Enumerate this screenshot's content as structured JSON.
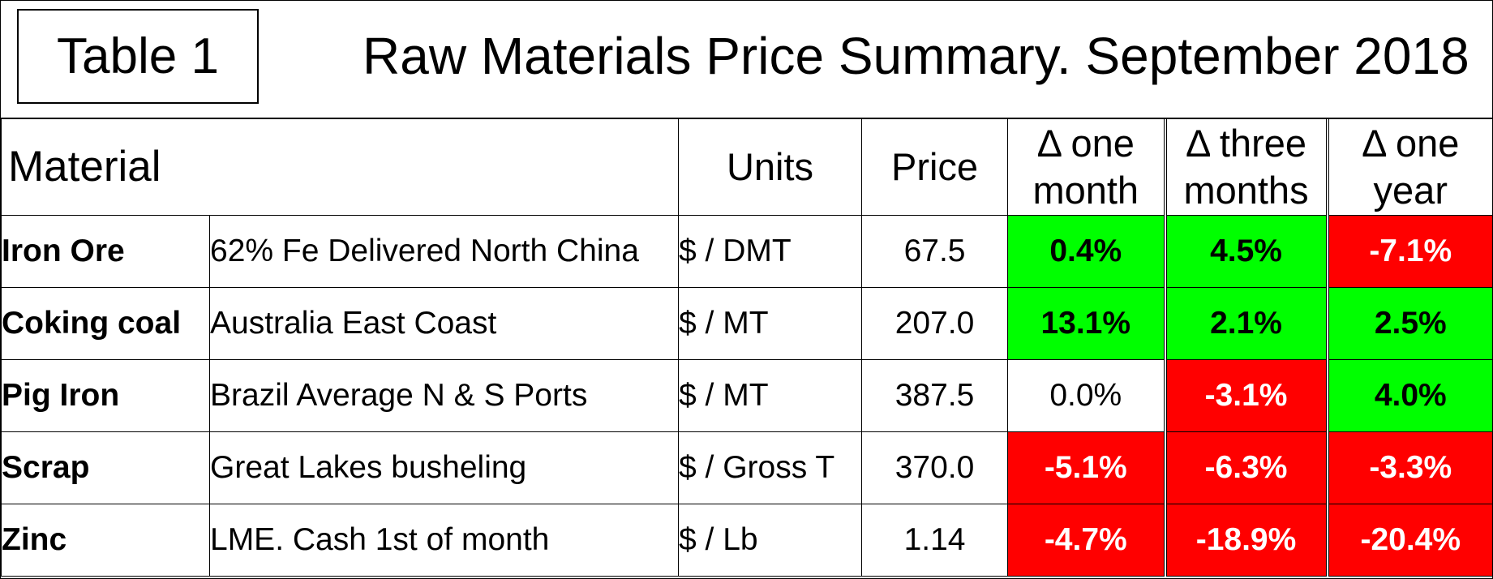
{
  "header": {
    "table_label": "Table 1",
    "title": "Raw Materials Price Summary. September 2018"
  },
  "columns": {
    "material": "Material",
    "units": "Units",
    "price": "Price",
    "delta_one_month": [
      "Δ one",
      "month"
    ],
    "delta_three_months": [
      "Δ three",
      "months"
    ],
    "delta_one_year": [
      "Δ one",
      "year"
    ]
  },
  "rows": [
    {
      "name": "Iron Ore",
      "description": "62% Fe Delivered North China",
      "units": "$ / DMT",
      "price": "67.5",
      "d1m": "0.4%",
      "d3m": "4.5%",
      "d1y": "-7.1%"
    },
    {
      "name": "Coking coal",
      "description": "Australia East Coast",
      "units": "$ / MT",
      "price": "207.0",
      "d1m": "13.1%",
      "d3m": "2.1%",
      "d1y": "2.5%"
    },
    {
      "name": "Pig Iron",
      "description": "Brazil Average N & S Ports",
      "units": "$ / MT",
      "price": "387.5",
      "d1m": "0.0%",
      "d3m": "-3.1%",
      "d1y": "4.0%"
    },
    {
      "name": "Scrap",
      "description": "Great Lakes busheling",
      "units": "$ / Gross T",
      "price": "370.0",
      "d1m": "-5.1%",
      "d3m": "-6.3%",
      "d1y": "-3.3%"
    },
    {
      "name": "Zinc",
      "description": "LME. Cash 1st of month",
      "units": "$ / Lb",
      "price": "1.14",
      "d1m": "-4.7%",
      "d3m": "-18.9%",
      "d1y": "-20.4%"
    }
  ],
  "colors": {
    "positive": "#00ff00",
    "negative": "#ff0000",
    "neutral": "#ffffff"
  }
}
